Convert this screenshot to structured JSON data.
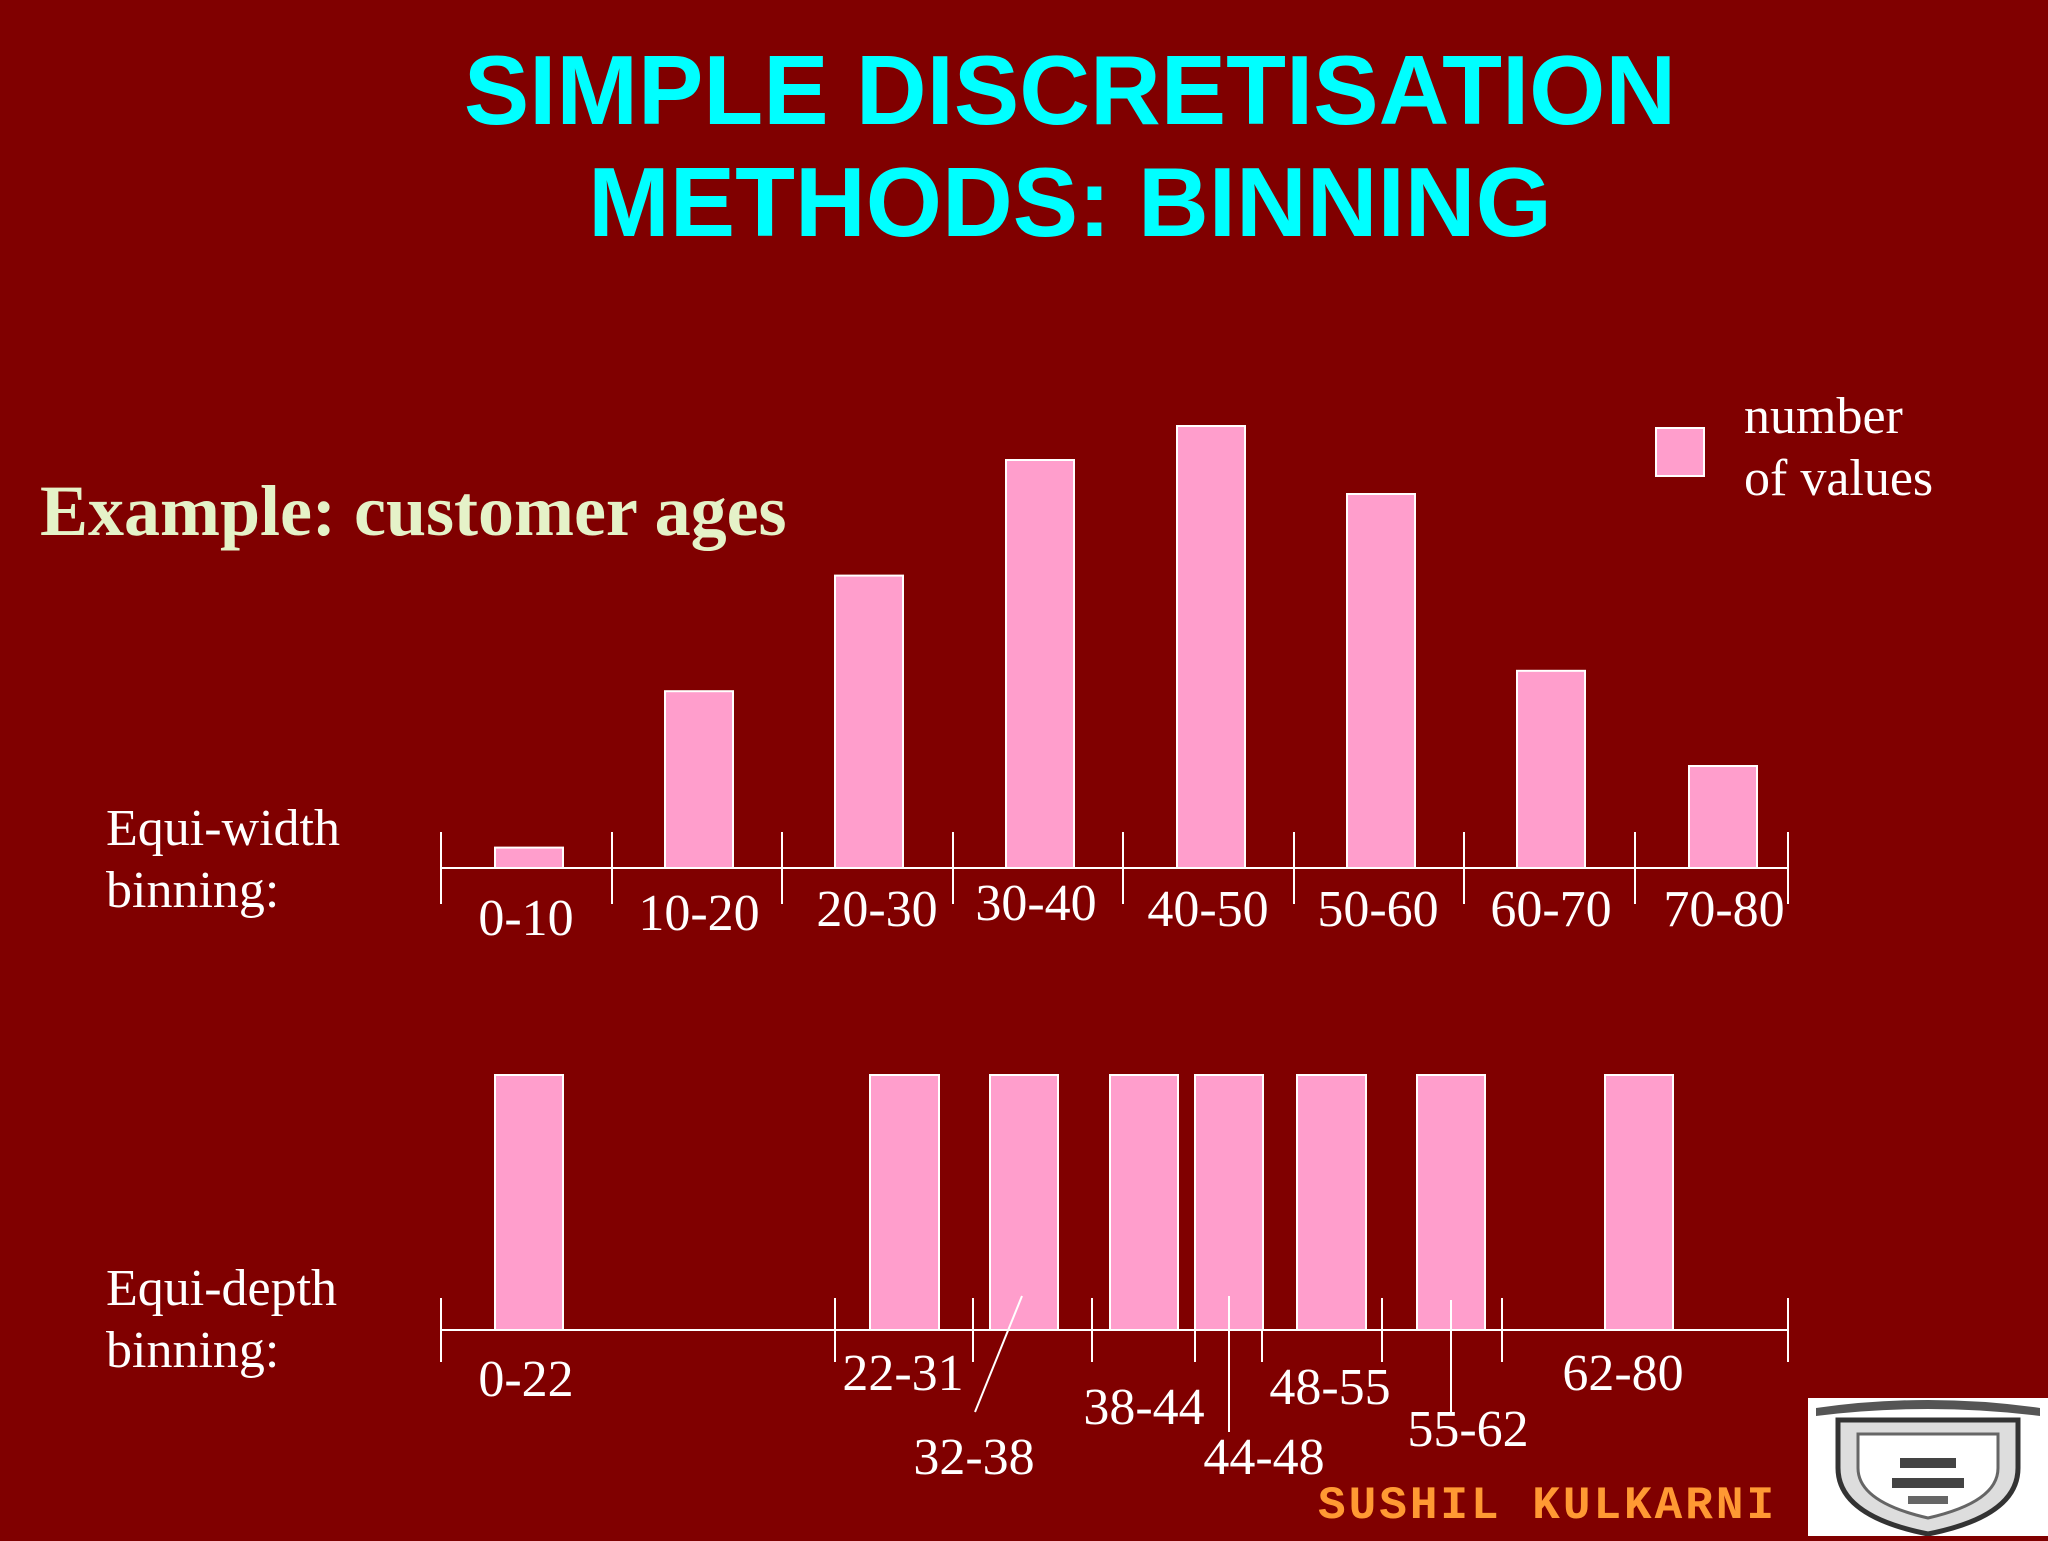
{
  "title": {
    "line1": "SIMPLE DISCRETISATION",
    "line2": "METHODS: BINNING"
  },
  "subtitle": "Example: customer ages",
  "legend": {
    "line1": "number",
    "line2": "of values",
    "color": "#FF9ECC"
  },
  "rows": {
    "equi_width": {
      "line1": "Equi-width",
      "line2": "binning:"
    },
    "equi_depth": {
      "line1": "Equi-depth",
      "line2": "binning:"
    }
  },
  "footer": "SUSHIL KULKARNI",
  "logo": {
    "icon": "university-crest-icon"
  },
  "colors": {
    "background": "#800000",
    "title": "#00FFFF",
    "subtitle": "#E5F2C8",
    "bar": "#FF9ECC",
    "footer": "#FF9933"
  },
  "chart_data": [
    {
      "type": "bar",
      "name": "equi-width",
      "categories": [
        "0-10",
        "10-20",
        "20-30",
        "30-40",
        "40-50",
        "50-60",
        "60-70",
        "70-80"
      ],
      "values": [
        3,
        26,
        43,
        60,
        65,
        55,
        29,
        15
      ],
      "ylim": [
        0,
        65
      ],
      "ylabel": "",
      "xlabel": ""
    },
    {
      "type": "bar",
      "name": "equi-depth",
      "categories": [
        "0-22",
        "22-31",
        "32-38",
        "38-44",
        "44-48",
        "48-55",
        "55-62",
        "62-80"
      ],
      "values": [
        1,
        1,
        1,
        1,
        1,
        1,
        1,
        1
      ],
      "ylim": [
        0,
        1
      ],
      "ylabel": "",
      "xlabel": ""
    }
  ]
}
